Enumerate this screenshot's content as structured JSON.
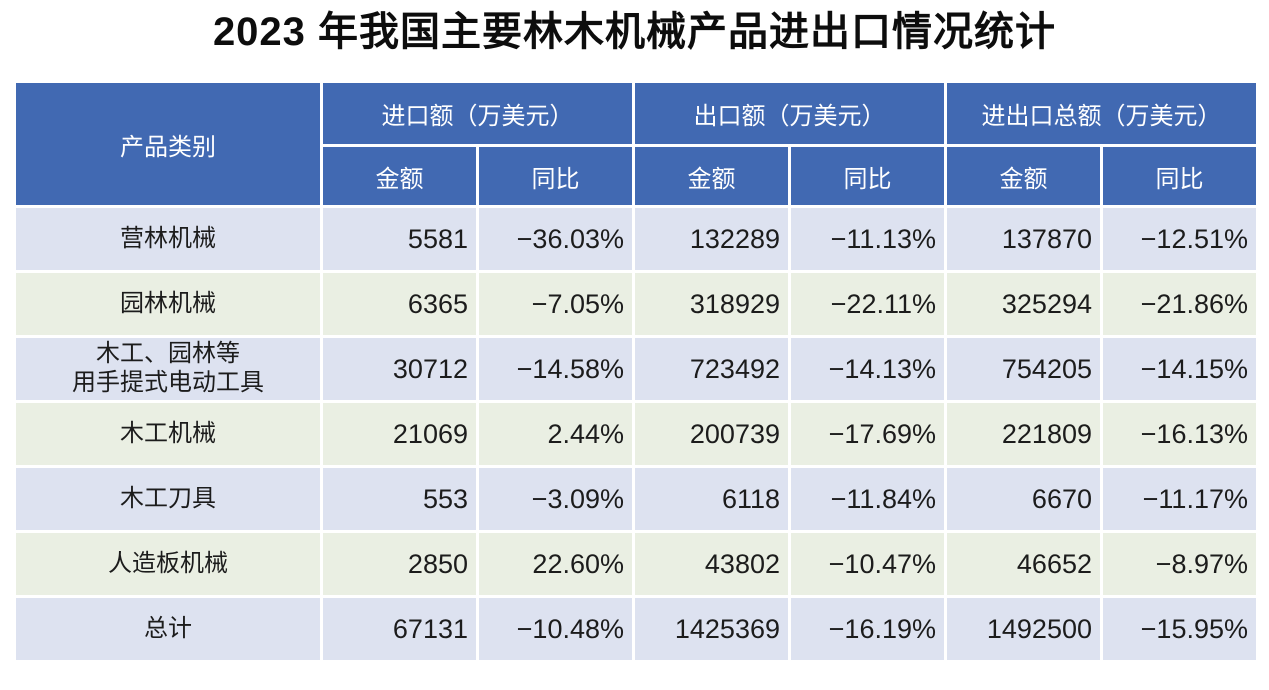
{
  "title": "2023 年我国主要林木机械产品进出口情况统计",
  "colors": {
    "header_bg": "#4169B2",
    "header_text": "#FFFFFF",
    "row_stripe_blue": "#DDE2F0",
    "row_stripe_green": "#EAEFE3",
    "gridline": "#FFFFFF",
    "body_text": "#1C1C1C"
  },
  "chart_data": {
    "type": "table",
    "title": "2023 年我国主要林木机械产品进出口情况统计",
    "product_column_header": "产品类别",
    "groups": [
      {
        "label": "进口额（万美元）",
        "sub": [
          "金额",
          "同比"
        ]
      },
      {
        "label": "出口额（万美元）",
        "sub": [
          "金额",
          "同比"
        ]
      },
      {
        "label": "进出口总额（万美元）",
        "sub": [
          "金额",
          "同比"
        ]
      }
    ],
    "rows": [
      {
        "product": "营林机械",
        "cells": [
          "5581",
          "−36.03%",
          "132289",
          "−11.13%",
          "137870",
          "−12.51%"
        ]
      },
      {
        "product": "园林机械",
        "cells": [
          "6365",
          "−7.05%",
          "318929",
          "−22.11%",
          "325294",
          "−21.86%"
        ]
      },
      {
        "product": "木工、园林等\n用手提式电动工具",
        "cells": [
          "30712",
          "−14.58%",
          "723492",
          "−14.13%",
          "754205",
          "−14.15%"
        ]
      },
      {
        "product": "木工机械",
        "cells": [
          "21069",
          "2.44%",
          "200739",
          "−17.69%",
          "221809",
          "−16.13%"
        ]
      },
      {
        "product": "木工刀具",
        "cells": [
          "553",
          "−3.09%",
          "6118",
          "−11.84%",
          "6670",
          "−11.17%"
        ]
      },
      {
        "product": "人造板机械",
        "cells": [
          "2850",
          "22.60%",
          "43802",
          "−10.47%",
          "46652",
          "−8.97%"
        ]
      },
      {
        "product": "总计",
        "cells": [
          "67131",
          "−10.48%",
          "1425369",
          "−16.19%",
          "1492500",
          "−15.95%"
        ]
      }
    ]
  }
}
